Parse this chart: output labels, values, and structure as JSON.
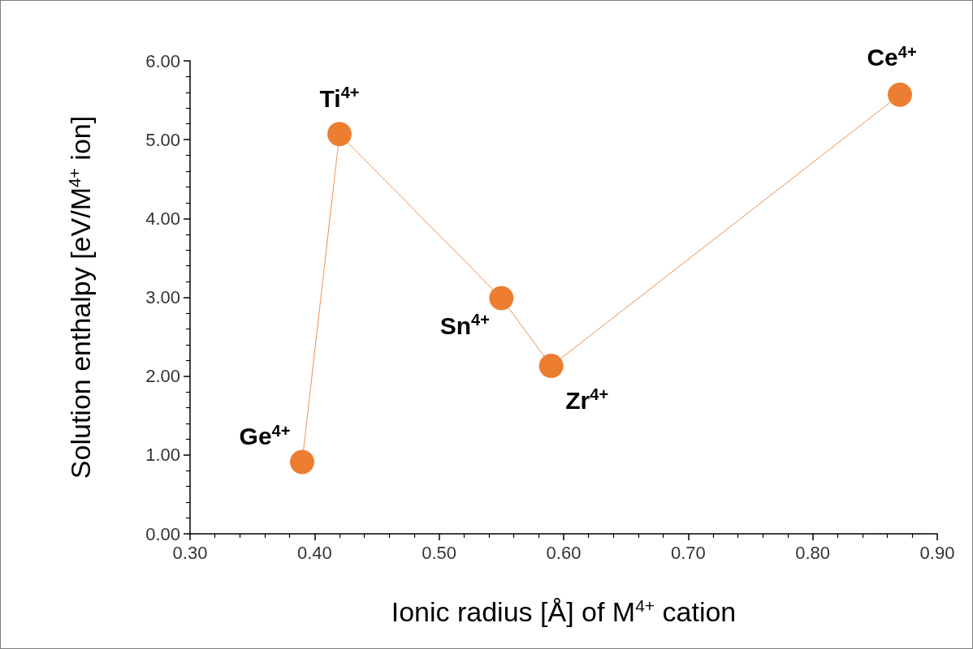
{
  "chart_data": {
    "type": "line",
    "xlabel": "Ionic radius [Å] of M$^{4+}$ cation",
    "ylabel": "Solution enthalpy [eV/M$^{4+}$ ion]",
    "x": [
      0.39,
      0.42,
      0.55,
      0.59,
      0.87
    ],
    "series": [
      {
        "color": "#ed7d31",
        "values": [
          0.91,
          5.07,
          2.99,
          2.13,
          5.57
        ]
      }
    ],
    "marker": "circle",
    "line_style": "dotted",
    "grid": false,
    "xlim": [
      0.3,
      0.9
    ],
    "xticks": [
      {
        "value": 0.3,
        "label": "0.30"
      },
      {
        "value": 0.4,
        "label": "0.40"
      },
      {
        "value": 0.5,
        "label": "0.50"
      },
      {
        "value": 0.6,
        "label": "0.60"
      },
      {
        "value": 0.7,
        "label": "0.70"
      },
      {
        "value": 0.8,
        "label": "0.80"
      },
      {
        "value": 0.9,
        "label": "0.90"
      }
    ],
    "ylim": [
      0,
      6
    ],
    "yticks": [
      {
        "value": 0,
        "label": "0.00"
      },
      {
        "value": 1,
        "label": "1.00"
      },
      {
        "value": 2,
        "label": "2.00"
      },
      {
        "value": 3,
        "label": "3.00"
      },
      {
        "value": 4,
        "label": "4.00"
      },
      {
        "value": 5,
        "label": "5.00"
      },
      {
        "value": 6,
        "label": "6.00"
      }
    ],
    "annotations": [
      {
        "text": "Ge$^{4+}$",
        "x": 0.39,
        "y": 0.91
      },
      {
        "text": "Ti$^{4+}$",
        "x": 0.42,
        "y": 5.07
      },
      {
        "text": "Sn$^{4+}$",
        "x": 0.55,
        "y": 2.99
      },
      {
        "text": "Zr$^{4+}$",
        "x": 0.59,
        "y": 2.13
      },
      {
        "text": "Ce$^{4+}$",
        "x": 0.87,
        "y": 5.57
      }
    ]
  }
}
